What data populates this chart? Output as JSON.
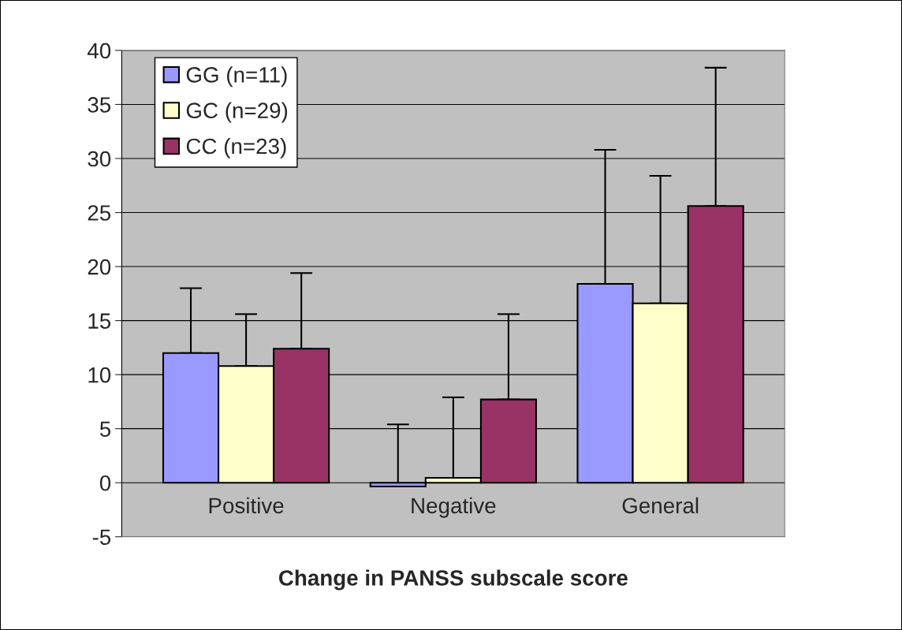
{
  "chart_data": {
    "type": "bar",
    "xlabel": "Change in PANSS subscale score",
    "categories": [
      "Positive",
      "Negative",
      "General"
    ],
    "series": [
      {
        "name": "GG (n=11)",
        "color": "#9999ff",
        "values": [
          12.0,
          -0.35,
          18.4
        ],
        "errors": [
          [
            12.0,
            18.0
          ],
          [
            -0.35,
            5.4
          ],
          [
            18.4,
            30.8
          ]
        ]
      },
      {
        "name": "GC (n=29)",
        "color": "#ffffcc",
        "values": [
          10.8,
          0.45,
          16.6
        ],
        "errors": [
          [
            10.8,
            15.6
          ],
          [
            0.45,
            7.9
          ],
          [
            16.6,
            28.4
          ]
        ]
      },
      {
        "name": "CC (n=23)",
        "color": "#993366",
        "values": [
          12.4,
          7.7,
          25.6
        ],
        "errors": [
          [
            12.4,
            19.4
          ],
          [
            7.7,
            15.6
          ],
          [
            25.6,
            38.4
          ]
        ]
      }
    ],
    "ylim": [
      -5,
      40
    ],
    "yticks": [
      -5,
      0,
      5,
      10,
      15,
      20,
      25,
      30,
      35,
      40
    ],
    "grid": "y",
    "legend": "top left"
  }
}
